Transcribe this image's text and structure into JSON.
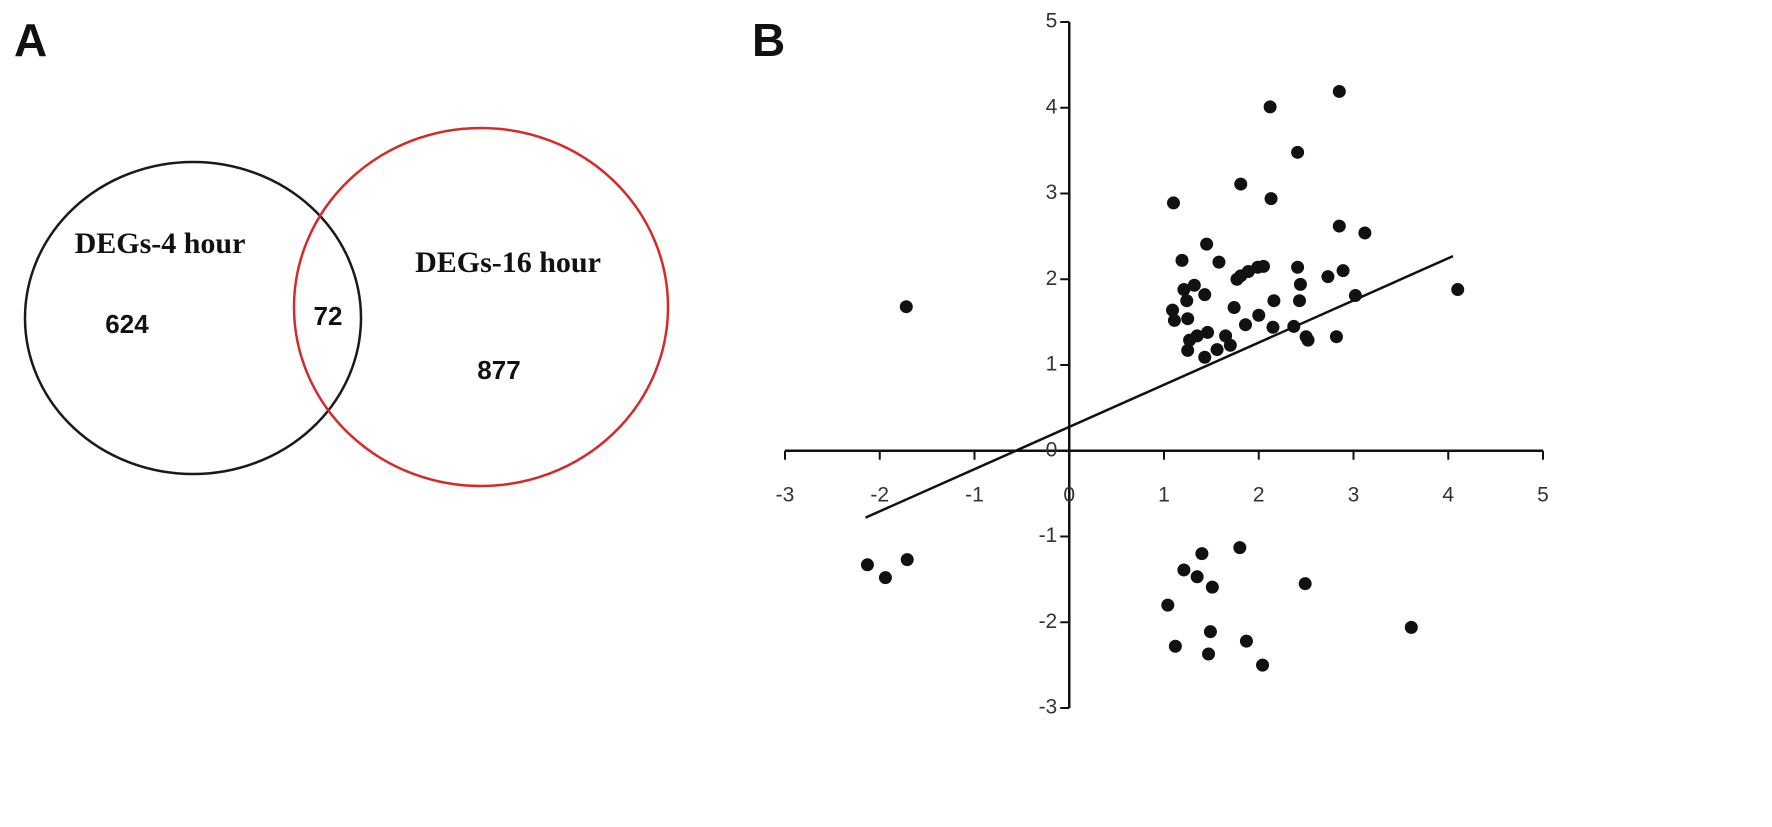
{
  "chart_data": [
    {
      "type": "venn",
      "panel": "A",
      "sets": [
        {
          "label": "DEGs-4 hour",
          "color": "#1a1a1a"
        },
        {
          "label": "DEGs-16 hour",
          "color": "#d42a2a"
        }
      ],
      "values": [
        624,
        72,
        877
      ]
    },
    {
      "type": "scatter",
      "panel": "B",
      "color": "#111111",
      "xlim": [
        -3,
        5
      ],
      "ylim": [
        -3,
        5
      ],
      "xticks": [
        -3,
        -2,
        -1,
        0,
        1,
        2,
        3,
        4,
        5
      ],
      "yticks": [
        -3,
        -2,
        -1,
        0,
        1,
        2,
        3,
        4,
        5
      ],
      "x": [
        -1.72,
        -2.13,
        -1.94,
        -1.71,
        1.1,
        1.19,
        1.81,
        2.12,
        2.41,
        2.85,
        2.13,
        2.85,
        3.12,
        4.1,
        1.45,
        1.58,
        1.21,
        1.32,
        1.24,
        1.09,
        1.11,
        1.25,
        1.43,
        1.27,
        1.25,
        1.35,
        1.46,
        1.43,
        1.56,
        1.65,
        1.7,
        1.77,
        1.81,
        1.89,
        1.99,
        2.05,
        1.74,
        1.86,
        2.0,
        2.16,
        2.15,
        2.41,
        2.44,
        2.43,
        2.37,
        2.52,
        2.5,
        2.73,
        2.89,
        3.02,
        2.82,
        1.8,
        1.4,
        1.21,
        1.35,
        1.51,
        1.04,
        1.12,
        1.49,
        1.47,
        1.87,
        2.04,
        2.49,
        3.61
      ],
      "y": [
        1.68,
        -1.33,
        -1.48,
        -1.27,
        2.89,
        2.22,
        3.11,
        4.01,
        3.48,
        4.19,
        2.94,
        2.62,
        2.54,
        1.88,
        2.41,
        2.2,
        1.88,
        1.93,
        1.75,
        1.64,
        1.52,
        1.54,
        1.82,
        1.29,
        1.17,
        1.34,
        1.38,
        1.09,
        1.18,
        1.34,
        1.23,
        2.0,
        2.04,
        2.09,
        2.14,
        2.15,
        1.67,
        1.47,
        1.58,
        1.75,
        1.44,
        2.14,
        1.94,
        1.75,
        1.45,
        1.29,
        1.33,
        2.03,
        2.1,
        1.81,
        1.33,
        -1.13,
        -1.2,
        -1.39,
        -1.47,
        -1.59,
        -1.8,
        -2.28,
        -2.11,
        -2.37,
        -2.22,
        -2.5,
        -1.55,
        -2.06
      ],
      "trendline": {
        "x": [
          -2.15,
          4.05
        ],
        "y": [
          -0.78,
          2.27
        ]
      }
    }
  ]
}
